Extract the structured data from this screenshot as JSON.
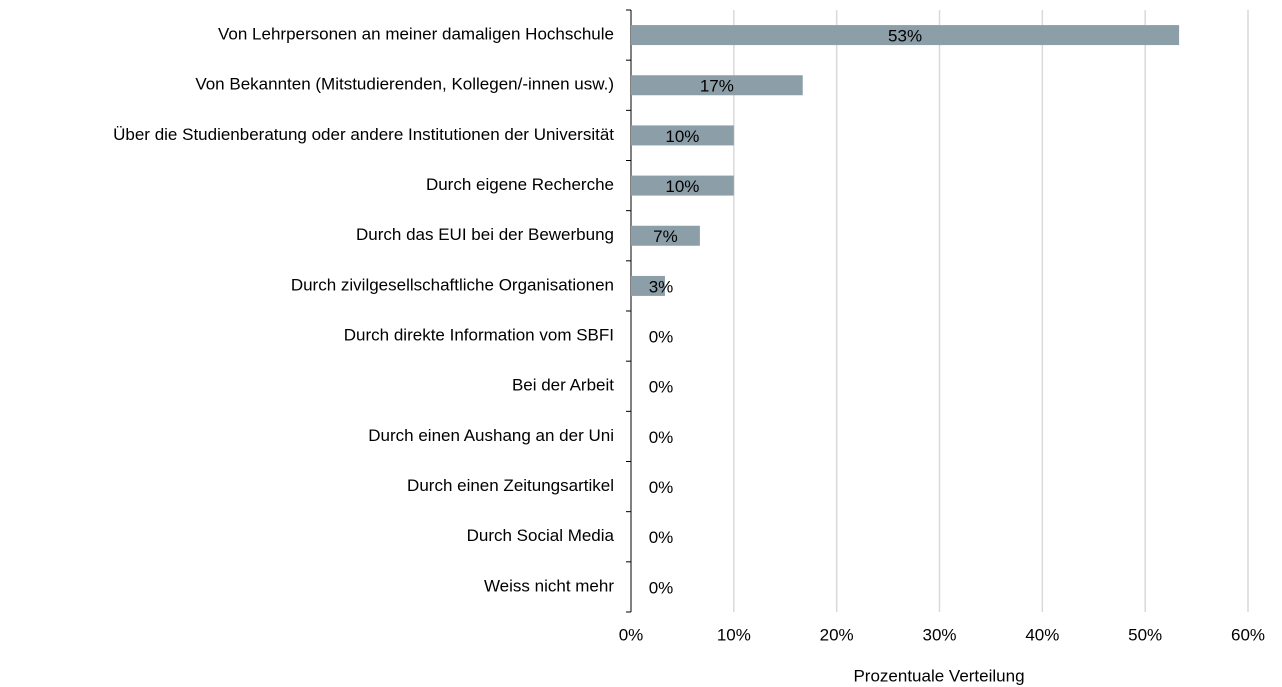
{
  "chart_data": {
    "type": "bar",
    "orientation": "horizontal",
    "categories": [
      "Von Lehrpersonen an meiner damaligen Hochschule",
      "Von Bekannten (Mitstudierenden, Kollegen/-innen usw.)",
      "Über die Studienberatung oder andere Institutionen der Universität",
      "Durch eigene Recherche",
      "Durch das EUI bei der Bewerbung",
      "Durch zivilgesellschaftliche Organisationen",
      "Durch direkte Information vom SBFI",
      "Bei der Arbeit",
      "Durch einen Aushang an der Uni",
      "Durch einen Zeitungsartikel",
      "Durch Social Media",
      "Weiss nicht mehr"
    ],
    "values": [
      53.3,
      16.7,
      10,
      10,
      6.7,
      3.3,
      0,
      0,
      0,
      0,
      0,
      0
    ],
    "value_labels": [
      "53%",
      "17%",
      "10%",
      "10%",
      "7%",
      "3%",
      "0%",
      "0%",
      "0%",
      "0%",
      "0%",
      "0%"
    ],
    "color": "#8c9ea8",
    "xlabel": "Prozentuale Verteilung",
    "xlim": [
      0,
      60
    ],
    "xticks": [
      {
        "value": 0,
        "label": "0%"
      },
      {
        "value": 10,
        "label": "10%"
      },
      {
        "value": 20,
        "label": "20%"
      },
      {
        "value": 30,
        "label": "30%"
      },
      {
        "value": 40,
        "label": "40%"
      },
      {
        "value": 50,
        "label": "50%"
      },
      {
        "value": 60,
        "label": "60%"
      }
    ],
    "grid": true
  }
}
